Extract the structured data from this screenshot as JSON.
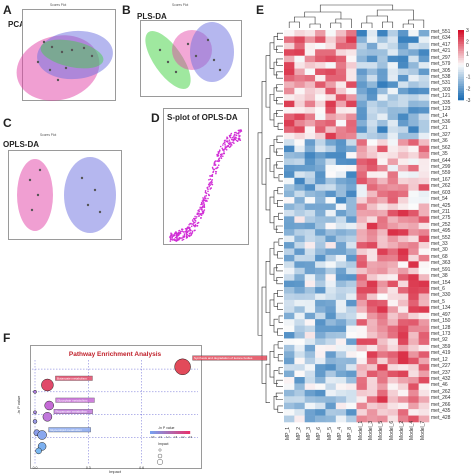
{
  "panels": {
    "A": {
      "letter": "A",
      "label": "PCA",
      "subtitle": "Scores Plot"
    },
    "B": {
      "letter": "B",
      "label": "PLS-DA",
      "subtitle": "Scores Plot"
    },
    "C": {
      "letter": "C",
      "label": "OPLS-DA",
      "subtitle": "Scores Plot"
    },
    "D": {
      "letter": "D",
      "label": "S-plot of OPLS-DA"
    },
    "E": {
      "letter": "E"
    },
    "F": {
      "letter": "F"
    }
  },
  "colors": {
    "model_pink": "#e23fa5",
    "mp_blue": "#6b6fe0",
    "green": "#3fd13f",
    "splot": "#d12fd6",
    "bubble_big": "#e24a5a",
    "heat_high": "#d5102b",
    "heat_low": "#1e6fb5",
    "heat_mid": "#fbfbfb"
  },
  "chart_data": [
    {
      "panel": "F",
      "type": "scatter",
      "title": "Pathway Enrichment Analysis",
      "xlabel": "Impact",
      "ylabel": "-ln P value",
      "xlim": [
        0,
        0.9
      ],
      "legend_title": "-ln P value",
      "legend_ticks": [
        "0.6",
        "1.0",
        "1.4",
        "1.8",
        "2.2",
        "2.6"
      ],
      "size_legend_title": "Impact",
      "x_ticks": [
        "0.0",
        "0.3",
        "0.6"
      ],
      "points": [
        {
          "x": 0.83,
          "y": 2.55,
          "label": "Synthesis and degradation of ketone bodies",
          "color": "#e24a5a",
          "r": 8
        },
        {
          "x": 0.07,
          "y": 2.15,
          "label": "Butanoate metabolism",
          "color": "#e04a6a",
          "r": 6
        },
        {
          "x": 0.08,
          "y": 1.7,
          "label": "Glyoxylate metabolism",
          "color": "#c56ad6",
          "r": 4.5
        },
        {
          "x": 0.07,
          "y": 1.45,
          "label": "Propanoate metabolism",
          "color": "#c078db",
          "r": 4.5
        },
        {
          "x": 0.0,
          "y": 2.0,
          "label": "",
          "color": "#b07ae0",
          "r": 1.6
        },
        {
          "x": 0.0,
          "y": 1.55,
          "label": "",
          "color": "#a98ae4",
          "r": 1.6
        },
        {
          "x": 0.0,
          "y": 1.35,
          "label": "",
          "color": "#9a9ae8",
          "r": 2
        },
        {
          "x": 0.01,
          "y": 1.1,
          "label": "",
          "color": "#8a9cea",
          "r": 3
        },
        {
          "x": 0.04,
          "y": 1.05,
          "label": "Glycerolipid metabolism",
          "color": "#8aa8ee",
          "r": 4.5
        },
        {
          "x": 0.04,
          "y": 0.8,
          "label": "",
          "color": "#7cb0f0",
          "r": 4
        },
        {
          "x": 0.02,
          "y": 0.7,
          "label": "",
          "color": "#7ab8f2",
          "r": 3
        }
      ]
    },
    {
      "panel": "E",
      "type": "heatmap",
      "rows": [
        "met_551",
        "met_634",
        "met_417",
        "met_421",
        "met_297",
        "met_579",
        "met_305",
        "met_538",
        "met_531",
        "met_303",
        "met_121",
        "met_335",
        "met_123",
        "met_14",
        "met_536",
        "met_21",
        "met_327",
        "met_36",
        "met_562",
        "met_35",
        "met_644",
        "met_299",
        "met_559",
        "met_167",
        "met_262",
        "met_603",
        "met_54",
        "met_425",
        "met_211",
        "met_275",
        "met_252",
        "met_495",
        "met_552",
        "met_33",
        "met_30",
        "met_68",
        "met_363",
        "met_591",
        "met_38",
        "met_154",
        "met_6",
        "met_330",
        "met_5",
        "met_134",
        "met_497",
        "met_150",
        "met_128",
        "met_173",
        "met_92",
        "met_359",
        "met_419",
        "met_12",
        "met_227",
        "met_237",
        "met_432",
        "met_46",
        "met_262",
        "met_264",
        "met_266",
        "met_435",
        "met_428"
      ],
      "columns": [
        "MP_1",
        "MP_2",
        "MP_3",
        "MP_6",
        "MP_5",
        "MP_4",
        "MP_8",
        "Model_1",
        "Model_3",
        "Model_5",
        "Model_6",
        "Model_2",
        "Model_4",
        "Model_7"
      ],
      "legend_ticks": [
        "3",
        "2",
        "1",
        "0",
        "-1",
        "-2",
        "-3"
      ]
    }
  ]
}
